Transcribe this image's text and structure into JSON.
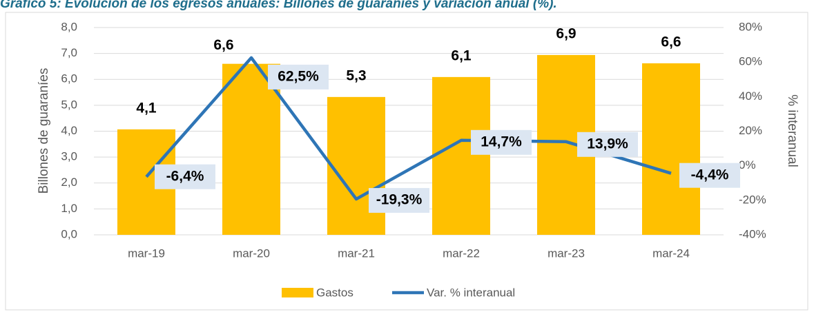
{
  "chart_data": {
    "type": "bar-line",
    "title": "Gráfico 5: Evolución de los egresos anuales: Billones de guaraníes y variación anual (%).",
    "y_label": "Billones de guaraníes",
    "y2_label": "% interanual",
    "categories": [
      "mar-19",
      "mar-20",
      "mar-21",
      "mar-22",
      "mar-23",
      "mar-24"
    ],
    "series": [
      {
        "name": "Gastos",
        "type": "bar",
        "color": "#ffc000",
        "values": [
          4.07,
          6.6,
          5.32,
          6.09,
          6.94,
          6.62
        ],
        "value_labels": [
          "4,1",
          "6,6",
          "5,3",
          "6,1",
          "6,9",
          "6,6"
        ]
      },
      {
        "name": "Var. % interanual",
        "type": "line",
        "axis": "y2",
        "color": "#2e75b6",
        "values": [
          -6.4,
          62.5,
          -19.3,
          14.7,
          13.9,
          -4.4
        ],
        "value_labels": [
          "-6,4%",
          "62,5%",
          "-19,3%",
          "14,7%",
          "13,9%",
          "-4,4%"
        ]
      }
    ],
    "ylim": [
      0,
      8
    ],
    "yticks": [
      {
        "value": 0,
        "label": "0,0"
      },
      {
        "value": 1,
        "label": "1,0"
      },
      {
        "value": 2,
        "label": "2,0"
      },
      {
        "value": 3,
        "label": "3,0"
      },
      {
        "value": 4,
        "label": "4,0"
      },
      {
        "value": 5,
        "label": "5,0"
      },
      {
        "value": 6,
        "label": "6,0"
      },
      {
        "value": 7,
        "label": "7,0"
      },
      {
        "value": 8,
        "label": "8,0"
      }
    ],
    "y2lim": [
      -40,
      80
    ],
    "y2ticks": [
      {
        "value": -40,
        "label": "-40%"
      },
      {
        "value": -20,
        "label": "-20%"
      },
      {
        "value": 0,
        "label": "0%"
      },
      {
        "value": 20,
        "label": "20%"
      },
      {
        "value": 40,
        "label": "40%"
      },
      {
        "value": 60,
        "label": "60%"
      },
      {
        "value": 80,
        "label": "80%"
      }
    ],
    "grid": true,
    "legend": "bottom"
  }
}
